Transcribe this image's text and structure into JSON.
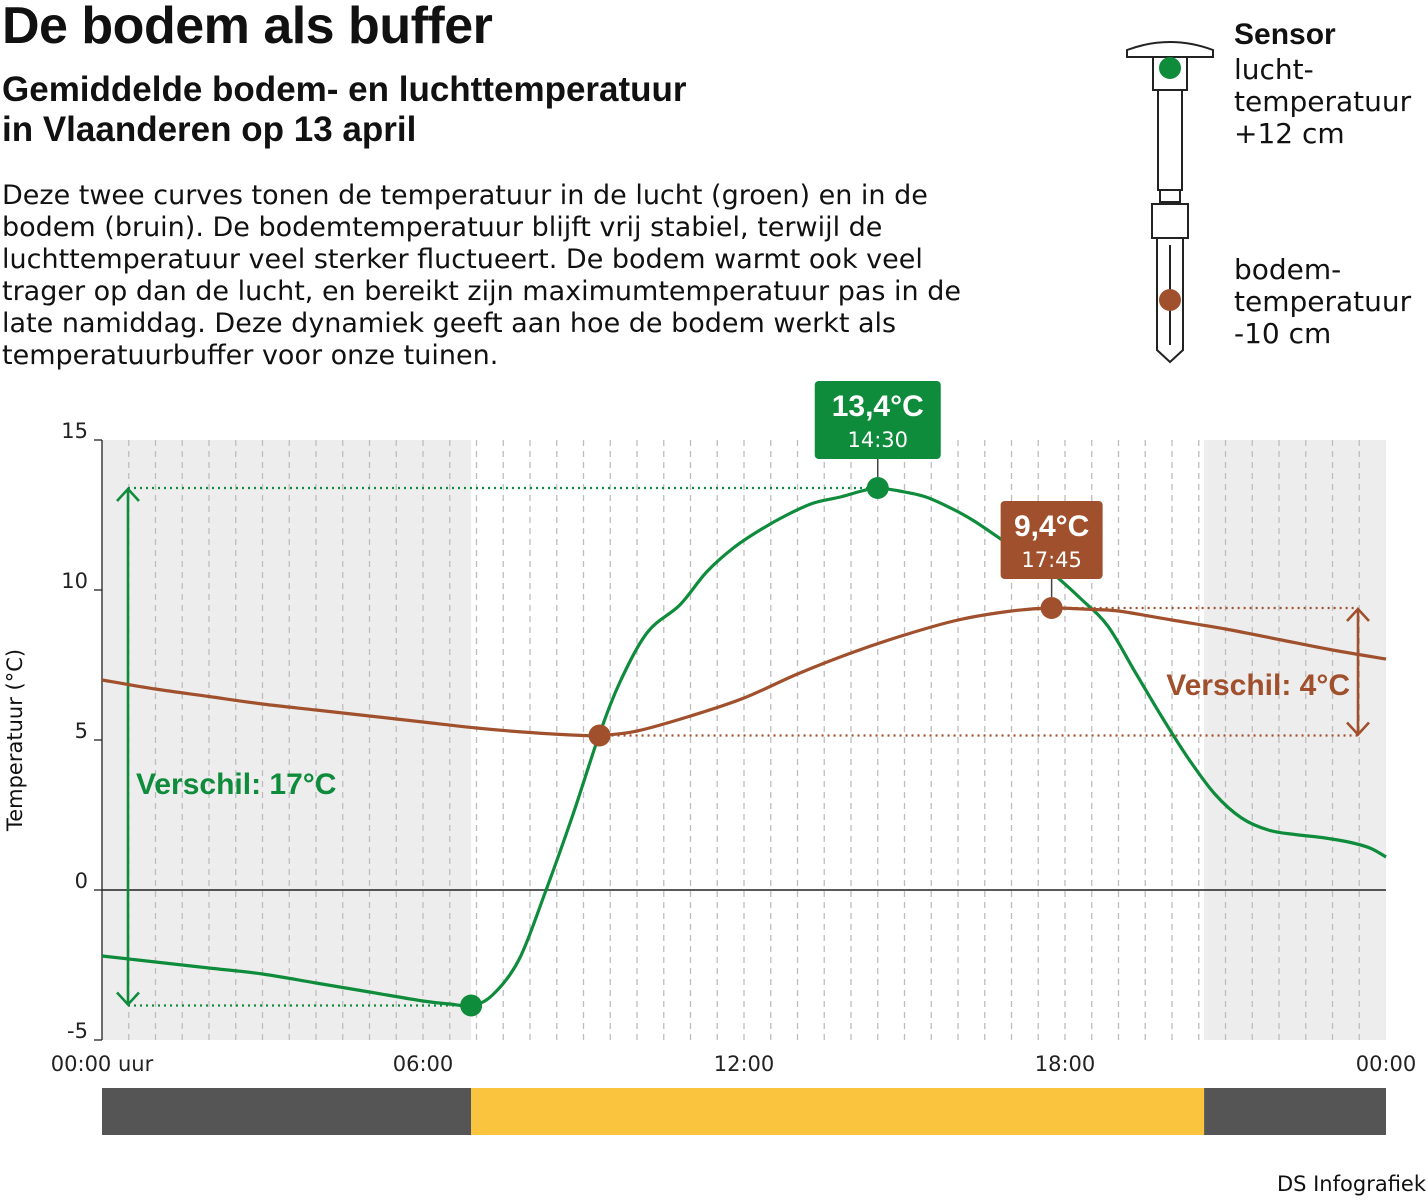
{
  "title": "De bodem als buffer",
  "subtitle": [
    "Gemiddelde bodem- en luchttemperatuur",
    "in Vlaanderen op 13 april"
  ],
  "intro": [
    "Deze twee curves tonen de temperatuur in de lucht (groen) en in de",
    "bodem (bruin). De bodemtemperatuur blijft vrij stabiel, terwijl de",
    "luchttemperatuur veel sterker fluctueert. De bodem warmt ook veel",
    "trager op dan de lucht, en bereikt zijn maximumtemperatuur pas in de",
    "late namiddag. Deze dynamiek geeft aan hoe de bodem werkt als",
    "temperatuurbuffer voor onze tuinen."
  ],
  "sensor": {
    "title": "Sensor",
    "air_label": [
      "lucht-",
      "temperatuur",
      "+12 cm"
    ],
    "soil_label": [
      "bodem-",
      "temperatuur",
      "-10 cm"
    ]
  },
  "credit": "DS Infografiek",
  "colors": {
    "air": "#0e8c3c",
    "soil": "#a0502c",
    "night_shade": "#ededed",
    "night_bar": "#555555",
    "day_bar": "#fbc43f"
  },
  "chart_data": {
    "type": "line",
    "ylabel": "Temperatuur (°C)",
    "ylim": [
      -5,
      15
    ],
    "yticks": [
      15,
      10,
      5,
      0,
      -5
    ],
    "xlim": [
      0,
      24
    ],
    "xticks": [
      {
        "x": 0,
        "label": "00:00 uur"
      },
      {
        "x": 6,
        "label": "06:00"
      },
      {
        "x": 12,
        "label": "12:00"
      },
      {
        "x": 18,
        "label": "18:00"
      },
      {
        "x": 24,
        "label": "00:00"
      }
    ],
    "grid": "dashed vertical lines every 30 minutes",
    "night_periods": [
      [
        0,
        6.9
      ],
      [
        20.6,
        24
      ]
    ],
    "series": [
      {
        "key": "air",
        "x": [
          0,
          1,
          2,
          3,
          4,
          5,
          6,
          6.5,
          6.9,
          7.3,
          7.8,
          8.3,
          8.8,
          9.3,
          9.7,
          10.2,
          10.8,
          11.3,
          11.8,
          12.3,
          12.8,
          13.3,
          13.8,
          14.2,
          14.5,
          14.9,
          15.4,
          15.9,
          16.3,
          16.8,
          17.3,
          17.8,
          18.3,
          18.8,
          19.3,
          19.8,
          20.3,
          20.8,
          21.3,
          21.8,
          22.3,
          22.8,
          23.3,
          23.7,
          24
        ],
        "y": [
          -2.2,
          -2.4,
          -2.6,
          -2.8,
          -3.1,
          -3.4,
          -3.7,
          -3.8,
          -3.85,
          -3.5,
          -2.3,
          0.0,
          2.5,
          5.2,
          7.0,
          8.6,
          9.5,
          10.6,
          11.4,
          12.0,
          12.5,
          12.9,
          13.1,
          13.3,
          13.4,
          13.3,
          13.1,
          12.7,
          12.3,
          11.7,
          11.1,
          10.5,
          9.7,
          8.8,
          7.3,
          5.8,
          4.4,
          3.2,
          2.4,
          2.0,
          1.85,
          1.75,
          1.6,
          1.4,
          1.1
        ]
      },
      {
        "key": "soil",
        "x": [
          0,
          1,
          2,
          3,
          4,
          5,
          6,
          7,
          8,
          9,
          9.3,
          10,
          11,
          12,
          13,
          14,
          15,
          16,
          17,
          17.75,
          18.5,
          19,
          20,
          21,
          22,
          23,
          24
        ],
        "y": [
          7.0,
          6.7,
          6.45,
          6.2,
          6.0,
          5.8,
          5.6,
          5.4,
          5.25,
          5.15,
          5.15,
          5.3,
          5.8,
          6.4,
          7.2,
          7.9,
          8.5,
          9.0,
          9.3,
          9.4,
          9.35,
          9.3,
          9.0,
          8.7,
          8.35,
          8.0,
          7.7
        ]
      }
    ],
    "markers": [
      {
        "series": "air",
        "x": 6.9,
        "y": -3.85
      },
      {
        "series": "air",
        "x": 14.5,
        "y": 13.4,
        "label_value": "13,4°C",
        "label_time": "14:30"
      },
      {
        "series": "soil",
        "x": 9.3,
        "y": 5.15
      },
      {
        "series": "soil",
        "x": 17.75,
        "y": 9.4,
        "label_value": "9,4°C",
        "label_time": "17:45"
      }
    ],
    "annotations": {
      "air_diff": "Verschil: 17°C",
      "soil_diff": "Verschil: 4°C"
    }
  }
}
